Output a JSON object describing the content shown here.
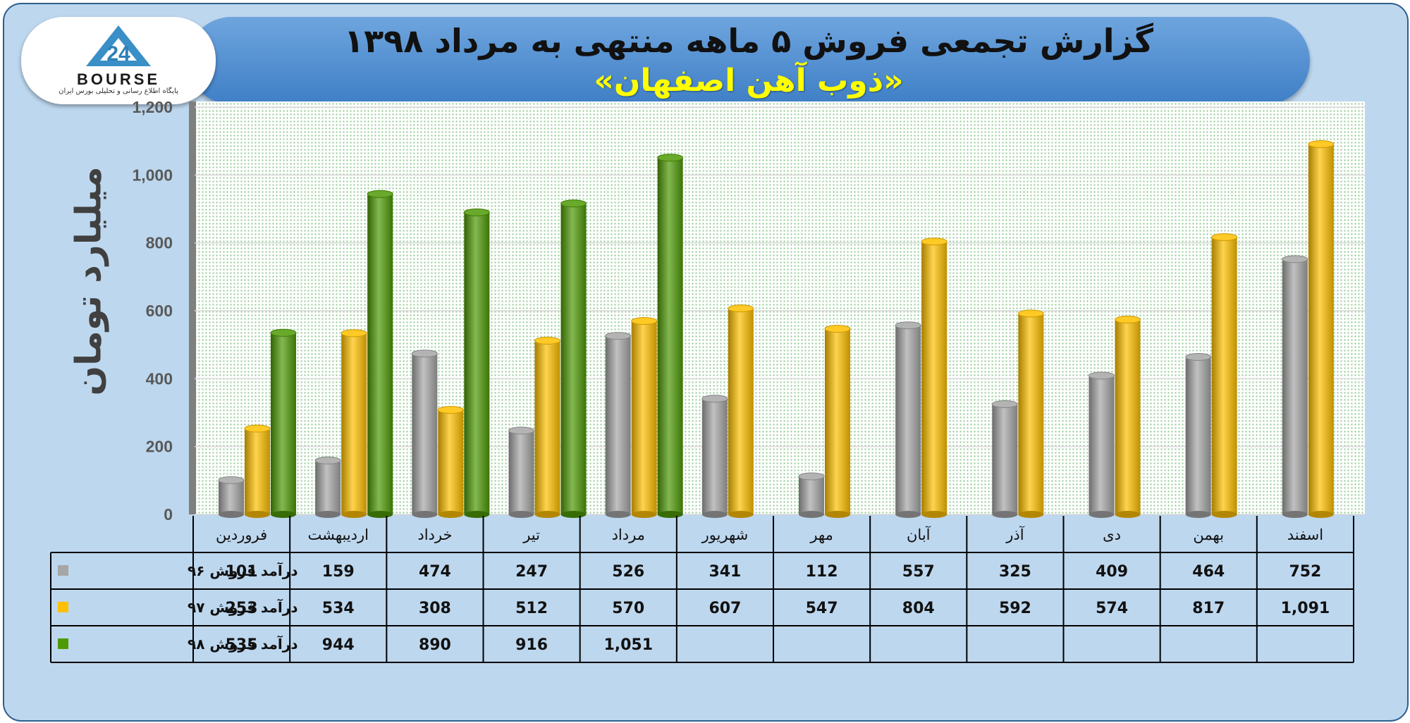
{
  "header": {
    "title": "گزارش تجمعی فروش ۵ ماهه منتهی به مرداد ۱۳۹۸",
    "subtitle": "«ذوب آهن اصفهان»"
  },
  "logo": {
    "text": "BOURSE",
    "number": "24",
    "tagline": "پایگاه اطلاع رسانی و تحلیلی بورس ایران"
  },
  "chart_data": {
    "type": "bar",
    "ylabel": "میلیارد تومان",
    "ylim": [
      0,
      1200
    ],
    "yticks": [
      "0",
      "200",
      "400",
      "600",
      "800",
      "1,000",
      "1,200"
    ],
    "grid": true,
    "categories": [
      "فروردین",
      "اردیبهشت",
      "خرداد",
      "تیر",
      "مرداد",
      "شهریور",
      "مهر",
      "آبان",
      "آذر",
      "دی",
      "بهمن",
      "اسفند"
    ],
    "series": [
      {
        "name": "درآمد فروش ۹۶",
        "color": "#a6a6a6",
        "values": [
          101,
          159,
          474,
          247,
          526,
          341,
          112,
          557,
          325,
          409,
          464,
          752
        ],
        "labels": [
          "101",
          "159",
          "474",
          "247",
          "526",
          "341",
          "112",
          "557",
          "325",
          "409",
          "464",
          "752"
        ]
      },
      {
        "name": "درآمد فروش ۹۷",
        "color": "#ffc000",
        "values": [
          253,
          534,
          308,
          512,
          570,
          607,
          547,
          804,
          592,
          574,
          817,
          1091
        ],
        "labels": [
          "253",
          "534",
          "308",
          "512",
          "570",
          "607",
          "547",
          "804",
          "592",
          "574",
          "817",
          "1,091"
        ]
      },
      {
        "name": "درآمد فروش ۹۸",
        "color": "#4e9a06",
        "values": [
          535,
          944,
          890,
          916,
          1051,
          null,
          null,
          null,
          null,
          null,
          null,
          null
        ],
        "labels": [
          "535",
          "944",
          "890",
          "916",
          "1,051",
          "",
          "",
          "",
          "",
          "",
          "",
          ""
        ]
      }
    ]
  }
}
